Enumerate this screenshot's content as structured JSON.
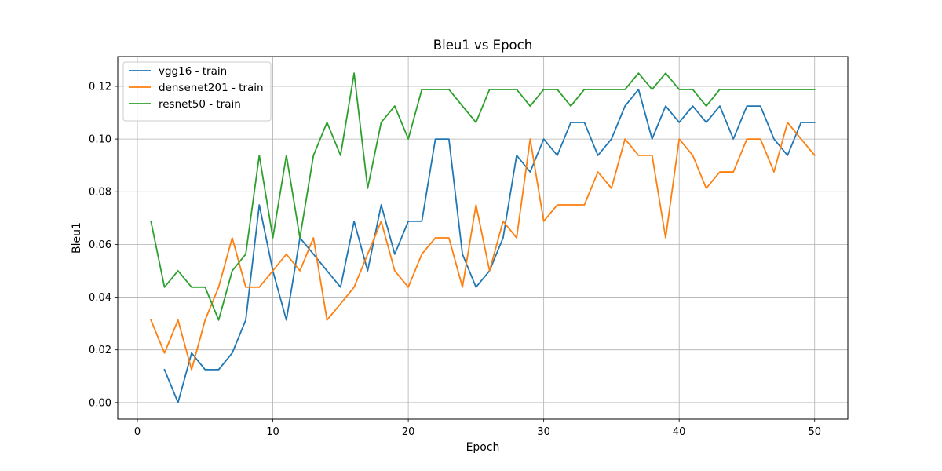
{
  "chart_data": {
    "type": "line",
    "title": "Bleu1 vs Epoch",
    "xlabel": "Epoch",
    "ylabel": "Bleu1",
    "xlim": [
      -1.45,
      52.45
    ],
    "ylim": [
      -0.0063,
      0.1313
    ],
    "xticks": [
      0,
      10,
      20,
      30,
      40,
      50
    ],
    "xtick_labels": [
      "0",
      "10",
      "20",
      "30",
      "40",
      "50"
    ],
    "yticks": [
      0.0,
      0.02,
      0.04,
      0.06,
      0.08,
      0.1,
      0.12
    ],
    "ytick_labels": [
      "0.00",
      "0.02",
      "0.04",
      "0.06",
      "0.08",
      "0.10",
      "0.12"
    ],
    "grid": true,
    "legend_position": "top-left",
    "series": [
      {
        "name": "vgg16 - train",
        "color": "#1f77b4",
        "x": [
          2,
          3,
          4,
          5,
          6,
          7,
          8,
          9,
          10,
          11,
          12,
          13,
          14,
          15,
          16,
          17,
          18,
          19,
          20,
          21,
          22,
          23,
          24,
          25,
          26,
          27,
          28,
          29,
          30,
          31,
          32,
          33,
          34,
          35,
          36,
          37,
          38,
          39,
          40,
          41,
          42,
          43,
          44,
          45,
          46,
          47,
          48,
          49,
          50
        ],
        "values": [
          0.0125,
          0.0,
          0.0188,
          0.0125,
          0.0125,
          0.0188,
          0.0313,
          0.075,
          0.05,
          0.0313,
          0.0625,
          0.0563,
          0.05,
          0.0438,
          0.0688,
          0.05,
          0.075,
          0.0563,
          0.0688,
          0.0688,
          0.1,
          0.1,
          0.0563,
          0.0438,
          0.05,
          0.0625,
          0.0938,
          0.0875,
          0.1,
          0.0938,
          0.1063,
          0.1063,
          0.0938,
          0.1,
          0.1125,
          0.1188,
          0.1,
          0.1125,
          0.1063,
          0.1125,
          0.1063,
          0.1125,
          0.1,
          0.1125,
          0.1125,
          0.1,
          0.0938,
          0.1063,
          0.1063
        ]
      },
      {
        "name": "densenet201 - train",
        "color": "#ff7f0e",
        "x": [
          1,
          2,
          3,
          4,
          5,
          6,
          7,
          8,
          9,
          10,
          11,
          12,
          13,
          14,
          15,
          16,
          17,
          18,
          19,
          20,
          21,
          22,
          23,
          24,
          25,
          26,
          27,
          28,
          29,
          30,
          31,
          32,
          33,
          34,
          35,
          36,
          37,
          38,
          39,
          40,
          41,
          42,
          43,
          44,
          45,
          46,
          47,
          48,
          49,
          50
        ],
        "values": [
          0.0313,
          0.0188,
          0.0313,
          0.0125,
          0.0313,
          0.0438,
          0.0625,
          0.0438,
          0.0438,
          0.05,
          0.0563,
          0.05,
          0.0625,
          0.0313,
          0.0375,
          0.0438,
          0.0563,
          0.0688,
          0.05,
          0.0438,
          0.0563,
          0.0625,
          0.0625,
          0.0438,
          0.075,
          0.05,
          0.0688,
          0.0625,
          0.1,
          0.0688,
          0.075,
          0.075,
          0.075,
          0.0875,
          0.0813,
          0.1,
          0.0938,
          0.0938,
          0.0625,
          0.1,
          0.0938,
          0.0813,
          0.0875,
          0.0875,
          0.1,
          0.1,
          0.0875,
          0.1063,
          0.1,
          0.0938
        ]
      },
      {
        "name": "resnet50 - train",
        "color": "#2ca02c",
        "x": [
          1,
          2,
          3,
          4,
          5,
          6,
          7,
          8,
          9,
          10,
          11,
          12,
          13,
          14,
          15,
          16,
          17,
          18,
          19,
          20,
          21,
          22,
          23,
          24,
          25,
          26,
          27,
          28,
          29,
          30,
          31,
          32,
          33,
          34,
          35,
          36,
          37,
          38,
          39,
          40,
          41,
          42,
          43,
          44,
          45,
          46,
          47,
          48,
          49,
          50
        ],
        "values": [
          0.0688,
          0.0438,
          0.05,
          0.0438,
          0.0438,
          0.0313,
          0.05,
          0.0563,
          0.0938,
          0.0625,
          0.0938,
          0.0625,
          0.0938,
          0.1063,
          0.0938,
          0.125,
          0.0813,
          0.1063,
          0.1125,
          0.1,
          0.1188,
          0.1188,
          0.1188,
          0.1125,
          0.1063,
          0.1188,
          0.1188,
          0.1188,
          0.1125,
          0.1188,
          0.1188,
          0.1125,
          0.1188,
          0.1188,
          0.1188,
          0.1188,
          0.125,
          0.1188,
          0.125,
          0.1188,
          0.1188,
          0.1125,
          0.1188,
          0.1188,
          0.1188,
          0.1188,
          0.1188,
          0.1188,
          0.1188,
          0.1188
        ]
      }
    ]
  }
}
